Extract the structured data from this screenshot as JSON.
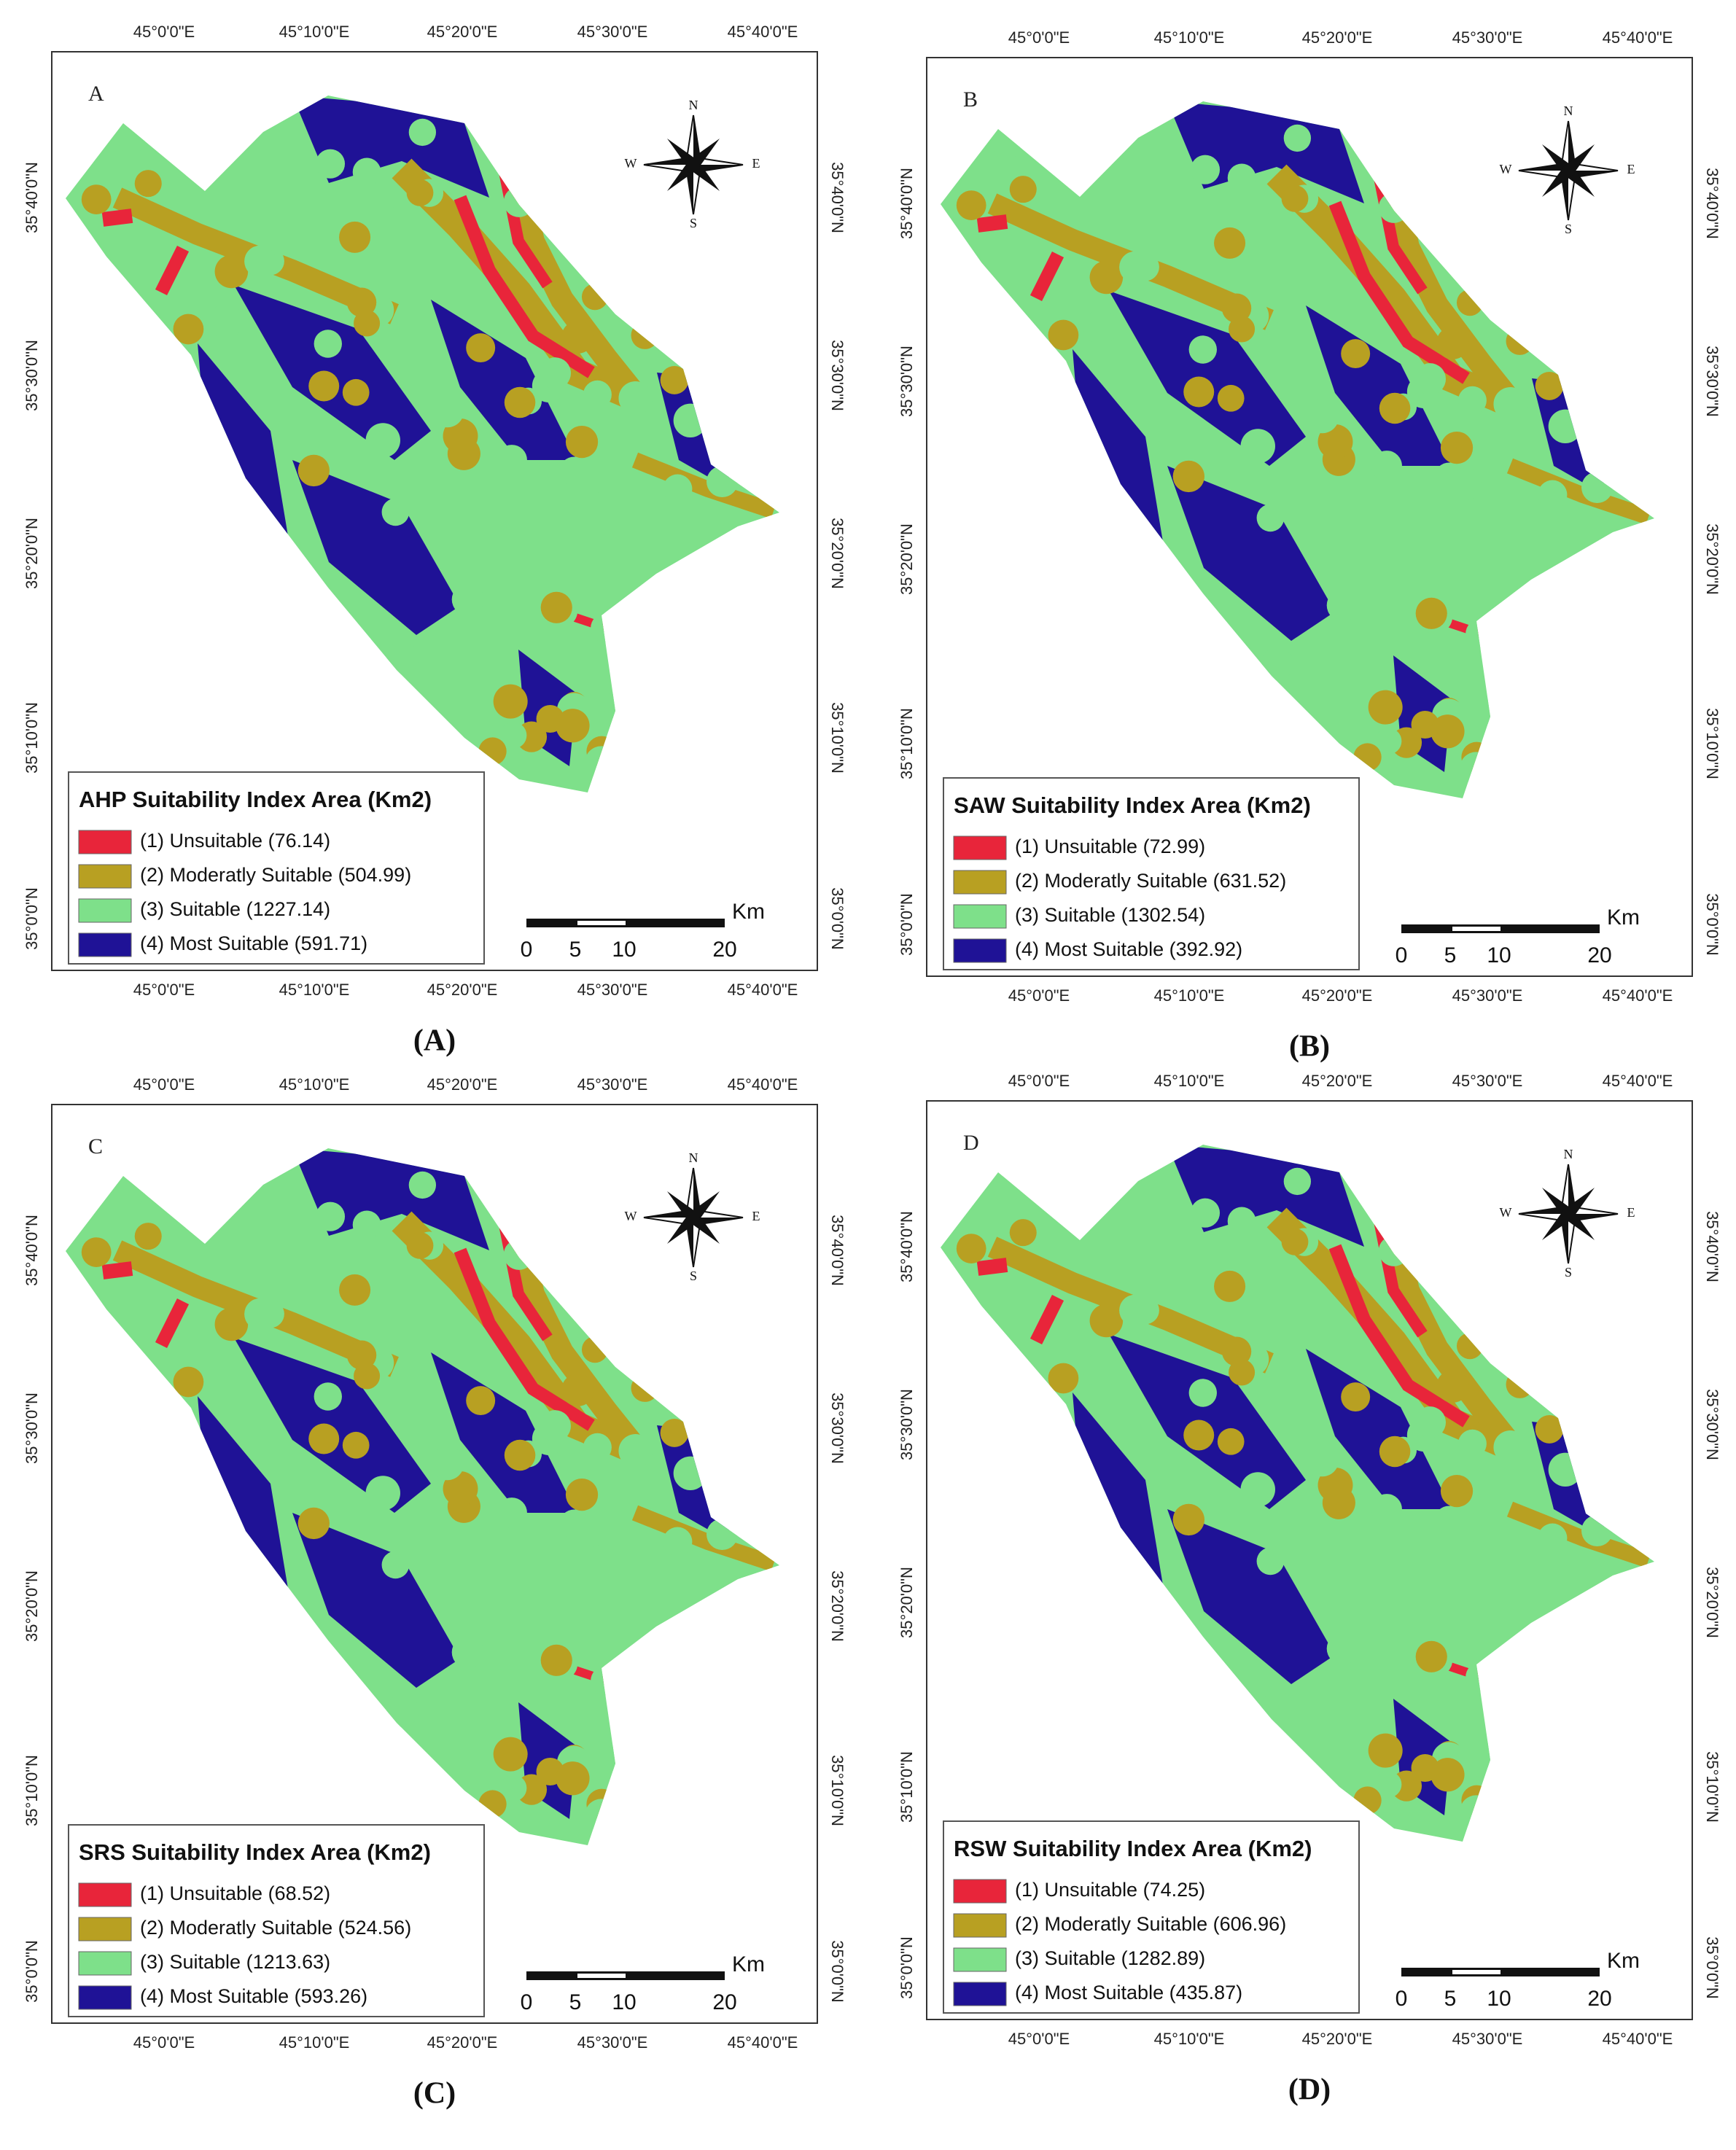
{
  "axes": {
    "longitude": [
      "45°0'0\"E",
      "45°10'0\"E",
      "45°20'0\"E",
      "45°30'0\"E",
      "45°40'0\"E"
    ],
    "latitude": [
      "35°40'0\"N",
      "35°30'0\"N",
      "35°20'0\"N",
      "35°10'0\"N",
      "35°0'0\"N"
    ]
  },
  "compass": {
    "n": "N",
    "e": "E",
    "s": "S",
    "w": "W"
  },
  "scale_bar": {
    "unit": "Km",
    "labels": [
      "0",
      "5",
      "10",
      "20"
    ]
  },
  "panels": [
    {
      "letter": "A",
      "legend_title": "AHP Suitability Index Area (Km2)",
      "legend_items": [
        "(1)  Unsuitable (76.14)",
        "(2) Moderatly Suitable (504.99)",
        "(3)  Suitable (1227.14)",
        "(4)  Most Suitable (591.71)"
      ],
      "caption": "(A)"
    },
    {
      "letter": "B",
      "legend_title": "SAW Suitability Index Area (Km2)",
      "legend_items": [
        "(1)  Unsuitable (72.99)",
        "(2)  Moderatly Suitable (631.52)",
        "(3)  Suitable (1302.54)",
        "(4)  Most Suitable (392.92)"
      ],
      "caption": "(B)"
    },
    {
      "letter": "C",
      "legend_title": "SRS Suitability Index Area (Km2)",
      "legend_items": [
        "(1)  Unsuitable (68.52)",
        "(2)  Moderatly Suitable (524.56)",
        "(3)  Suitable (1213.63)",
        "(4)  Most Suitable (593.26)"
      ],
      "caption": "(C)"
    },
    {
      "letter": "D",
      "legend_title": "RSW Suitability Index Area (Km2)",
      "legend_items": [
        "(1)  Unsuitable (74.25)",
        "(2) Moderatly Suitable (606.96)",
        "(3)  Suitable (1282.89)",
        "(4)  Most Suitable (435.87)"
      ],
      "caption": "(D)"
    }
  ]
}
